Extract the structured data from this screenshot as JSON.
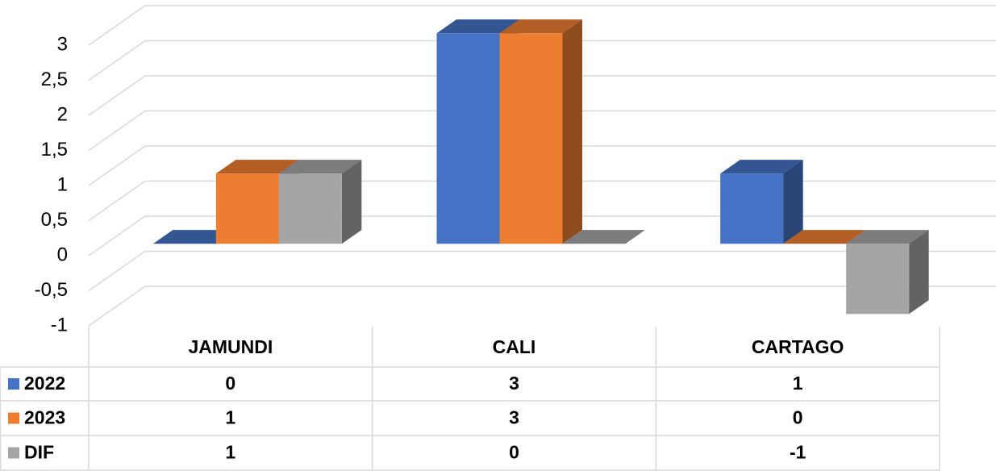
{
  "chart_data": {
    "type": "bar3d",
    "categories": [
      "JAMUNDI",
      "CALI",
      "CARTAGO"
    ],
    "series": [
      {
        "name": "2022",
        "color": "#4472c4",
        "values": [
          0,
          3,
          1
        ]
      },
      {
        "name": "2023",
        "color": "#ed7d31",
        "values": [
          1,
          3,
          0
        ]
      },
      {
        "name": "DIF",
        "color": "#a5a5a5",
        "values": [
          1,
          0,
          -1
        ]
      }
    ],
    "ylim": [
      -1,
      3
    ],
    "yticks": [
      -1,
      {
        "value": -0.5,
        "label": "-0,5"
      },
      0,
      {
        "value": 0.5,
        "label": "0,5"
      },
      1,
      {
        "value": 1.5,
        "label": "1,5"
      },
      2,
      {
        "value": 2.5,
        "label": "2,5"
      },
      3
    ],
    "grid": true,
    "data_table": true
  }
}
